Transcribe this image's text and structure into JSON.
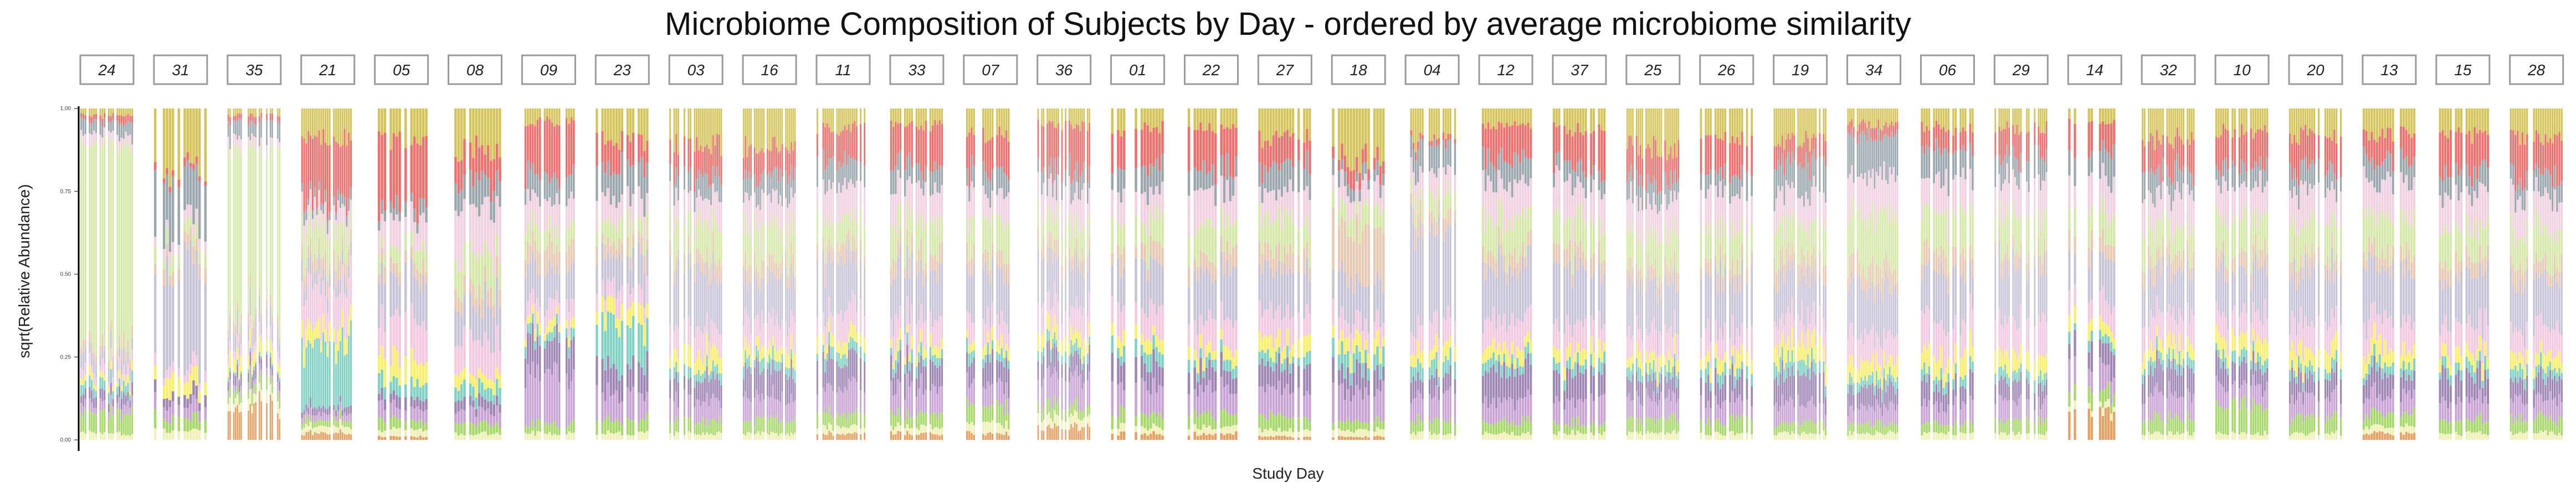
{
  "chart_data": {
    "type": "bar",
    "stacked": true,
    "faceted": true,
    "title": "Microbiome Composition of Subjects by Day - ordered by average microbiome similarity",
    "xlabel": "Study Day",
    "ylabel": "sqrt(Relative Abundance)",
    "ylim": [
      0,
      1
    ],
    "y_ticks": [
      "0.00",
      "0.25",
      "0.50",
      "0.75",
      "1.00"
    ],
    "facets": [
      "24",
      "31",
      "35",
      "21",
      "05",
      "08",
      "09",
      "23",
      "03",
      "16",
      "11",
      "33",
      "07",
      "36",
      "01",
      "22",
      "27",
      "18",
      "04",
      "12",
      "37",
      "25",
      "26",
      "19",
      "34",
      "06",
      "29",
      "14",
      "32",
      "10",
      "20",
      "13",
      "15",
      "28"
    ],
    "taxa_colors": [
      "#e8a062",
      "#f0f0b8",
      "#a6d96a",
      "#c9a3d6",
      "#9e86b4",
      "#7fd1c4",
      "#f9ef6a",
      "#f4c9e0",
      "#c8c4d8",
      "#e9c9b4",
      "#d4e9a8",
      "#f2d0e0",
      "#9aa8ae",
      "#ee6f6b",
      "#d4c45a"
    ],
    "composition_by_facet": [
      [
        0.0,
        0.02,
        0.06,
        0.03,
        0.03,
        0.03,
        0.02,
        0.03,
        0.04,
        0.03,
        0.6,
        0.03,
        0.04,
        0.02,
        0.02
      ],
      [
        0.0,
        0.03,
        0.04,
        0.04,
        0.03,
        0.0,
        0.05,
        0.03,
        0.32,
        0.04,
        0.04,
        0.03,
        0.15,
        0.02,
        0.18
      ],
      [
        0.1,
        0.03,
        0.03,
        0.02,
        0.03,
        0.01,
        0.04,
        0.03,
        0.06,
        0.03,
        0.5,
        0.03,
        0.05,
        0.02,
        0.02
      ],
      [
        0.02,
        0.02,
        0.02,
        0.02,
        0.02,
        0.2,
        0.05,
        0.12,
        0.05,
        0.05,
        0.08,
        0.05,
        0.03,
        0.18,
        0.09
      ],
      [
        0.01,
        0.02,
        0.03,
        0.04,
        0.03,
        0.05,
        0.07,
        0.12,
        0.12,
        0.04,
        0.05,
        0.08,
        0.04,
        0.2,
        0.1
      ],
      [
        0.0,
        0.02,
        0.03,
        0.04,
        0.03,
        0.04,
        0.04,
        0.1,
        0.12,
        0.05,
        0.1,
        0.14,
        0.08,
        0.09,
        0.12
      ],
      [
        0.0,
        0.02,
        0.03,
        0.15,
        0.1,
        0.03,
        0.03,
        0.06,
        0.1,
        0.07,
        0.06,
        0.08,
        0.07,
        0.16,
        0.04
      ],
      [
        0.0,
        0.02,
        0.04,
        0.08,
        0.08,
        0.12,
        0.05,
        0.06,
        0.1,
        0.04,
        0.06,
        0.07,
        0.1,
        0.08,
        0.1
      ],
      [
        0.0,
        0.02,
        0.04,
        0.06,
        0.06,
        0.03,
        0.05,
        0.08,
        0.16,
        0.05,
        0.1,
        0.08,
        0.06,
        0.1,
        0.11
      ],
      [
        0.0,
        0.02,
        0.04,
        0.07,
        0.08,
        0.03,
        0.04,
        0.08,
        0.12,
        0.05,
        0.1,
        0.1,
        0.07,
        0.08,
        0.12
      ],
      [
        0.02,
        0.02,
        0.04,
        0.08,
        0.08,
        0.03,
        0.04,
        0.08,
        0.14,
        0.05,
        0.08,
        0.1,
        0.08,
        0.1,
        0.06
      ],
      [
        0.02,
        0.02,
        0.04,
        0.08,
        0.07,
        0.03,
        0.03,
        0.08,
        0.14,
        0.05,
        0.1,
        0.1,
        0.07,
        0.12,
        0.05
      ],
      [
        0.02,
        0.03,
        0.05,
        0.07,
        0.07,
        0.03,
        0.03,
        0.07,
        0.14,
        0.05,
        0.1,
        0.08,
        0.06,
        0.12,
        0.08
      ],
      [
        0.04,
        0.03,
        0.04,
        0.08,
        0.06,
        0.03,
        0.04,
        0.08,
        0.13,
        0.05,
        0.08,
        0.09,
        0.06,
        0.14,
        0.05
      ],
      [
        0.02,
        0.02,
        0.04,
        0.08,
        0.07,
        0.04,
        0.04,
        0.09,
        0.13,
        0.05,
        0.09,
        0.08,
        0.07,
        0.12,
        0.06
      ],
      [
        0.02,
        0.02,
        0.04,
        0.07,
        0.06,
        0.03,
        0.04,
        0.08,
        0.14,
        0.05,
        0.1,
        0.1,
        0.07,
        0.12,
        0.06
      ],
      [
        0.01,
        0.02,
        0.04,
        0.08,
        0.07,
        0.03,
        0.05,
        0.08,
        0.13,
        0.06,
        0.09,
        0.08,
        0.09,
        0.08,
        0.09
      ],
      [
        0.01,
        0.02,
        0.03,
        0.09,
        0.06,
        0.05,
        0.04,
        0.06,
        0.12,
        0.15,
        0.06,
        0.07,
        0.04,
        0.05,
        0.15
      ],
      [
        0.0,
        0.02,
        0.04,
        0.07,
        0.06,
        0.04,
        0.04,
        0.07,
        0.3,
        0.05,
        0.06,
        0.06,
        0.08,
        0.02,
        0.09
      ],
      [
        0.0,
        0.02,
        0.04,
        0.07,
        0.09,
        0.03,
        0.04,
        0.08,
        0.16,
        0.05,
        0.1,
        0.1,
        0.07,
        0.1,
        0.05
      ],
      [
        0.0,
        0.02,
        0.03,
        0.07,
        0.08,
        0.03,
        0.04,
        0.08,
        0.16,
        0.05,
        0.1,
        0.1,
        0.06,
        0.12,
        0.06
      ],
      [
        0.0,
        0.02,
        0.04,
        0.06,
        0.06,
        0.03,
        0.04,
        0.08,
        0.14,
        0.05,
        0.1,
        0.1,
        0.06,
        0.1,
        0.12
      ],
      [
        0.0,
        0.02,
        0.04,
        0.06,
        0.07,
        0.03,
        0.04,
        0.08,
        0.16,
        0.05,
        0.1,
        0.1,
        0.06,
        0.1,
        0.09
      ],
      [
        0.0,
        0.02,
        0.03,
        0.06,
        0.08,
        0.04,
        0.06,
        0.08,
        0.12,
        0.06,
        0.1,
        0.1,
        0.1,
        0.06,
        0.09
      ],
      [
        0.0,
        0.02,
        0.03,
        0.05,
        0.06,
        0.03,
        0.05,
        0.08,
        0.15,
        0.06,
        0.15,
        0.12,
        0.12,
        0.03,
        0.05
      ],
      [
        0.0,
        0.02,
        0.03,
        0.06,
        0.06,
        0.03,
        0.06,
        0.1,
        0.14,
        0.06,
        0.12,
        0.1,
        0.1,
        0.06,
        0.06
      ],
      [
        0.0,
        0.02,
        0.04,
        0.06,
        0.06,
        0.03,
        0.06,
        0.1,
        0.16,
        0.05,
        0.1,
        0.1,
        0.08,
        0.08,
        0.06
      ],
      [
        0.08,
        0.02,
        0.04,
        0.08,
        0.07,
        0.03,
        0.04,
        0.08,
        0.12,
        0.05,
        0.08,
        0.1,
        0.08,
        0.08,
        0.05
      ],
      [
        0.0,
        0.02,
        0.05,
        0.07,
        0.08,
        0.03,
        0.04,
        0.08,
        0.13,
        0.05,
        0.09,
        0.1,
        0.07,
        0.1,
        0.09
      ],
      [
        0.0,
        0.02,
        0.08,
        0.06,
        0.06,
        0.03,
        0.05,
        0.08,
        0.14,
        0.05,
        0.1,
        0.1,
        0.06,
        0.1,
        0.07
      ],
      [
        0.0,
        0.02,
        0.05,
        0.06,
        0.06,
        0.03,
        0.05,
        0.08,
        0.15,
        0.05,
        0.1,
        0.1,
        0.07,
        0.1,
        0.08
      ],
      [
        0.02,
        0.02,
        0.04,
        0.06,
        0.06,
        0.03,
        0.05,
        0.08,
        0.16,
        0.05,
        0.1,
        0.1,
        0.07,
        0.08,
        0.08
      ],
      [
        0.0,
        0.02,
        0.04,
        0.06,
        0.07,
        0.03,
        0.04,
        0.08,
        0.15,
        0.05,
        0.1,
        0.1,
        0.06,
        0.12,
        0.08
      ],
      [
        0.0,
        0.02,
        0.04,
        0.06,
        0.06,
        0.03,
        0.04,
        0.08,
        0.15,
        0.05,
        0.1,
        0.1,
        0.06,
        0.12,
        0.09
      ]
    ]
  }
}
